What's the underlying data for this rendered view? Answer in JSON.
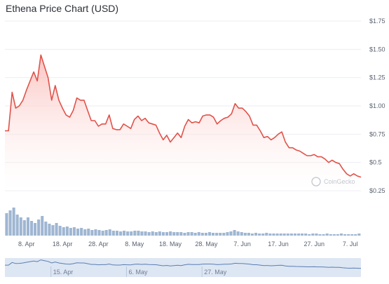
{
  "title": "Ethena Price Chart (USD)",
  "watermark": "CoinGecko",
  "colors": {
    "line": "#e0524a",
    "fill_top": "#f9b9b5",
    "fill_bottom": "#ffffff",
    "grid": "#eceef2",
    "volume": "#9fb6d2",
    "navigator_bg": "#dde6f3",
    "navigator_line": "#5b7fb3"
  },
  "chart_data": {
    "type": "area",
    "title": "Ethena Price Chart (USD)",
    "ylabel": "",
    "xlabel": "",
    "y_axis_position": "right",
    "ylim": [
      0.25,
      1.75
    ],
    "yticks": [
      0.25,
      0.5,
      0.75,
      1.0,
      1.25,
      1.5,
      1.75
    ],
    "ytick_labels": [
      "$0.25",
      "$0.5",
      "$0.75",
      "$1.00",
      "$1.25",
      "$1.50",
      "$1.75"
    ],
    "xlim": [
      "2024-04-02",
      "2024-07-10"
    ],
    "xtick_dates": [
      "2024-04-08",
      "2024-04-18",
      "2024-04-28",
      "2024-05-08",
      "2024-05-18",
      "2024-05-28",
      "2024-06-07",
      "2024-06-17",
      "2024-06-27",
      "2024-07-07"
    ],
    "xtick_labels": [
      "8. Apr",
      "18. Apr",
      "28. Apr",
      "8. May",
      "18. May",
      "28. May",
      "7. Jun",
      "17. Jun",
      "27. Jun",
      "7. Jul"
    ],
    "grid": true,
    "series": [
      {
        "points": [
          [
            "2024-04-02",
            0.78
          ],
          [
            "2024-04-03",
            0.78
          ],
          [
            "2024-04-04",
            1.12
          ],
          [
            "2024-04-05",
            0.98
          ],
          [
            "2024-04-06",
            1.0
          ],
          [
            "2024-04-07",
            1.05
          ],
          [
            "2024-04-08",
            1.14
          ],
          [
            "2024-04-09",
            1.22
          ],
          [
            "2024-04-10",
            1.3
          ],
          [
            "2024-04-11",
            1.22
          ],
          [
            "2024-04-12",
            1.45
          ],
          [
            "2024-04-13",
            1.35
          ],
          [
            "2024-04-14",
            1.25
          ],
          [
            "2024-04-15",
            1.05
          ],
          [
            "2024-04-16",
            1.18
          ],
          [
            "2024-04-17",
            1.05
          ],
          [
            "2024-04-18",
            0.98
          ],
          [
            "2024-04-19",
            0.92
          ],
          [
            "2024-04-20",
            0.9
          ],
          [
            "2024-04-21",
            0.96
          ],
          [
            "2024-04-22",
            1.07
          ],
          [
            "2024-04-23",
            1.05
          ],
          [
            "2024-04-24",
            1.05
          ],
          [
            "2024-04-25",
            0.96
          ],
          [
            "2024-04-26",
            0.87
          ],
          [
            "2024-04-27",
            0.87
          ],
          [
            "2024-04-28",
            0.82
          ],
          [
            "2024-04-29",
            0.84
          ],
          [
            "2024-04-30",
            0.84
          ],
          [
            "2024-05-01",
            0.92
          ],
          [
            "2024-05-02",
            0.8
          ],
          [
            "2024-05-03",
            0.79
          ],
          [
            "2024-05-04",
            0.79
          ],
          [
            "2024-05-05",
            0.84
          ],
          [
            "2024-05-06",
            0.82
          ],
          [
            "2024-05-07",
            0.8
          ],
          [
            "2024-05-08",
            0.88
          ],
          [
            "2024-05-09",
            0.91
          ],
          [
            "2024-05-10",
            0.87
          ],
          [
            "2024-05-11",
            0.89
          ],
          [
            "2024-05-12",
            0.85
          ],
          [
            "2024-05-13",
            0.84
          ],
          [
            "2024-05-14",
            0.83
          ],
          [
            "2024-05-15",
            0.76
          ],
          [
            "2024-05-16",
            0.7
          ],
          [
            "2024-05-17",
            0.74
          ],
          [
            "2024-05-18",
            0.68
          ],
          [
            "2024-05-19",
            0.72
          ],
          [
            "2024-05-20",
            0.76
          ],
          [
            "2024-05-21",
            0.72
          ],
          [
            "2024-05-22",
            0.82
          ],
          [
            "2024-05-23",
            0.88
          ],
          [
            "2024-05-24",
            0.85
          ],
          [
            "2024-05-25",
            0.86
          ],
          [
            "2024-05-26",
            0.85
          ],
          [
            "2024-05-27",
            0.91
          ],
          [
            "2024-05-28",
            0.92
          ],
          [
            "2024-05-29",
            0.92
          ],
          [
            "2024-05-30",
            0.9
          ],
          [
            "2024-05-31",
            0.84
          ],
          [
            "2024-06-01",
            0.87
          ],
          [
            "2024-06-02",
            0.89
          ],
          [
            "2024-06-03",
            0.9
          ],
          [
            "2024-06-04",
            0.93
          ],
          [
            "2024-06-05",
            1.02
          ],
          [
            "2024-06-06",
            0.98
          ],
          [
            "2024-06-07",
            0.98
          ],
          [
            "2024-06-08",
            0.95
          ],
          [
            "2024-06-09",
            0.91
          ],
          [
            "2024-06-10",
            0.83
          ],
          [
            "2024-06-11",
            0.83
          ],
          [
            "2024-06-12",
            0.78
          ],
          [
            "2024-06-13",
            0.72
          ],
          [
            "2024-06-14",
            0.73
          ],
          [
            "2024-06-15",
            0.7
          ],
          [
            "2024-06-16",
            0.72
          ],
          [
            "2024-06-17",
            0.75
          ],
          [
            "2024-06-18",
            0.77
          ],
          [
            "2024-06-19",
            0.68
          ],
          [
            "2024-06-20",
            0.63
          ],
          [
            "2024-06-21",
            0.63
          ],
          [
            "2024-06-22",
            0.61
          ],
          [
            "2024-06-23",
            0.6
          ],
          [
            "2024-06-24",
            0.58
          ],
          [
            "2024-06-25",
            0.56
          ],
          [
            "2024-06-26",
            0.56
          ],
          [
            "2024-06-27",
            0.57
          ],
          [
            "2024-06-28",
            0.55
          ],
          [
            "2024-06-29",
            0.55
          ],
          [
            "2024-06-30",
            0.53
          ],
          [
            "2024-07-01",
            0.5
          ],
          [
            "2024-07-02",
            0.52
          ],
          [
            "2024-07-03",
            0.5
          ],
          [
            "2024-07-04",
            0.49
          ],
          [
            "2024-07-05",
            0.44
          ],
          [
            "2024-07-06",
            0.4
          ],
          [
            "2024-07-07",
            0.38
          ],
          [
            "2024-07-08",
            0.4
          ],
          [
            "2024-07-09",
            0.38
          ],
          [
            "2024-07-10",
            0.37
          ]
        ]
      }
    ],
    "volume_values": [
      3.2,
      3.6,
      4.0,
      3.0,
      2.6,
      2.2,
      2.6,
      2.1,
      1.8,
      2.3,
      2.8,
      2.0,
      1.7,
      1.5,
      1.8,
      1.4,
      1.2,
      1.3,
      1.1,
      1.2,
      1.0,
      1.1,
      0.9,
      1.0,
      0.8,
      0.9,
      0.8,
      0.7,
      0.8,
      0.9,
      0.7,
      0.7,
      0.6,
      0.7,
      0.6,
      0.6,
      0.7,
      0.7,
      0.6,
      0.6,
      0.5,
      0.6,
      0.5,
      0.6,
      0.5,
      0.5,
      0.6,
      0.5,
      0.5,
      0.5,
      0.4,
      0.5,
      0.5,
      0.4,
      0.5,
      0.4,
      0.4,
      0.5,
      0.4,
      0.4,
      0.4,
      0.4,
      0.5,
      0.6,
      0.8,
      0.6,
      0.5,
      0.4,
      0.4,
      0.3,
      0.4,
      0.3,
      0.3,
      0.4,
      0.3,
      0.3,
      0.3,
      0.3,
      0.3,
      0.3,
      0.3,
      0.3,
      0.3,
      0.3,
      0.3,
      0.2,
      0.3,
      0.3,
      0.2,
      0.2,
      0.3,
      0.2,
      0.2,
      0.2,
      0.3,
      0.2,
      0.2,
      0.2,
      0.2,
      0.3
    ],
    "navigator": {
      "xtick_dates": [
        "2024-04-15",
        "2024-05-06",
        "2024-05-27"
      ],
      "xtick_labels": [
        "15. Apr",
        "6. May",
        "27. May"
      ]
    }
  }
}
